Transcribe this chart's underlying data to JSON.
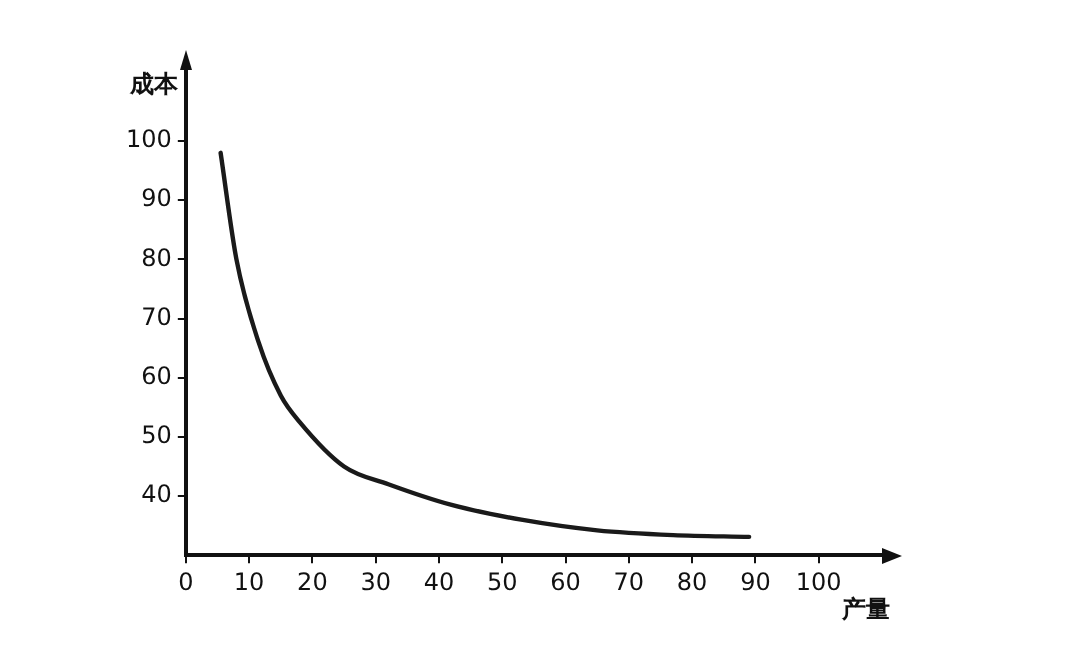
{
  "chart_data": {
    "type": "line",
    "xlabel": "产量",
    "ylabel": "成本",
    "series": [
      {
        "color": "#1a1a1a",
        "x": [
          5.5,
          8,
          11.5,
          15,
          18,
          25,
          32,
          42,
          53,
          65,
          77,
          89
        ],
        "values": [
          98,
          80,
          66,
          57,
          52.5,
          45,
          42,
          38.5,
          36,
          34.2,
          33.4,
          33.1
        ]
      }
    ],
    "xlim": [
      0,
      110
    ],
    "xticks": [
      0,
      10,
      20,
      30,
      40,
      50,
      60,
      70,
      80,
      90,
      100
    ],
    "ylim": [
      30,
      112
    ],
    "yticks": [
      40,
      50,
      60,
      70,
      80,
      90,
      100
    ],
    "grid": false,
    "legend": false,
    "marker": "none",
    "line_style": "solid"
  }
}
